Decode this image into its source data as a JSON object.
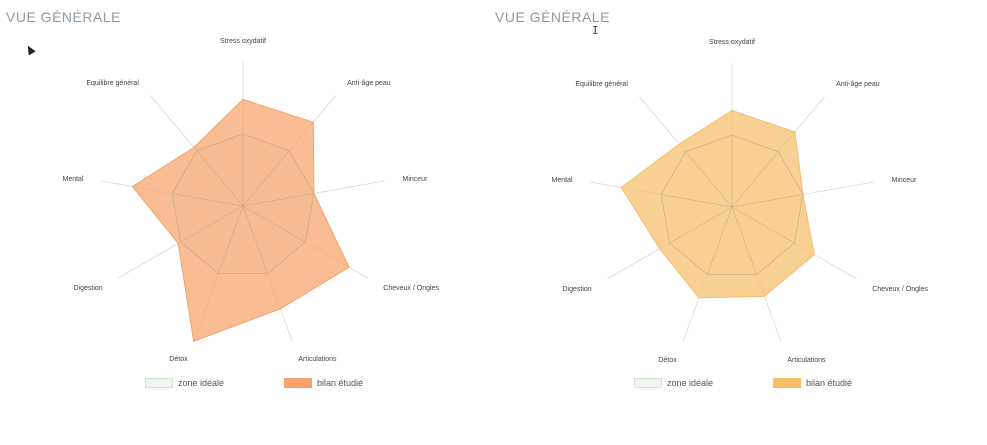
{
  "colors": {
    "ideal_fill": "#eef6ef",
    "ideal_stroke": "#cfe3d0",
    "grid": "#cccccc",
    "left_fill": "#f6a26a",
    "right_fill": "#f7be6a"
  },
  "panels": [
    {
      "title": "VUE GÉNÉRALE",
      "legend": {
        "ideal": "zone idéale",
        "studied": "bilan étudié"
      }
    },
    {
      "title": "VUE GÉNÉRALE",
      "legend": {
        "ideal": "zone idéale",
        "studied": "bilan étudié"
      }
    }
  ],
  "chart_data": [
    {
      "type": "radar",
      "categories": [
        "Stress oxydatif",
        "Anti-âge peau",
        "Minceur",
        "Cheveux / Ongles",
        "Articulations",
        "Détox",
        "Digestion",
        "Mental",
        "Equilibre général"
      ],
      "rmax": 100,
      "grid_levels": [
        50
      ],
      "series": [
        {
          "name": "zone idéale",
          "values": [
            50,
            50,
            50,
            50,
            50,
            50,
            50,
            50,
            50
          ]
        },
        {
          "name": "bilan étudié",
          "values": [
            74,
            76,
            50,
            85,
            76,
            100,
            52,
            78,
            53
          ]
        }
      ],
      "legend_position": "bottom"
    },
    {
      "type": "radar",
      "categories": [
        "Stress oxydatif",
        "Anti-âge peau",
        "Minceur",
        "Cheveux / Ongles",
        "Articulations",
        "Détox",
        "Digestion",
        "Mental",
        "Equilibre général"
      ],
      "rmax": 100,
      "grid_levels": [
        50
      ],
      "series": [
        {
          "name": "zone idéale",
          "values": [
            50,
            50,
            50,
            50,
            50,
            50,
            50,
            50,
            50
          ]
        },
        {
          "name": "bilan étudié",
          "values": [
            67,
            68,
            50,
            66,
            66,
            67,
            58,
            78,
            57
          ]
        }
      ],
      "legend_position": "bottom"
    }
  ]
}
